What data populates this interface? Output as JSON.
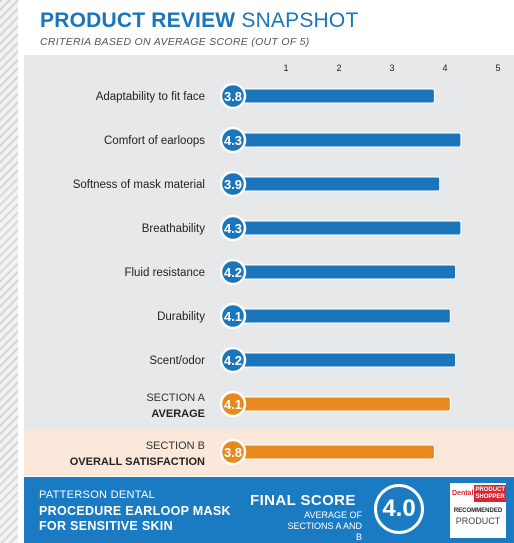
{
  "header": {
    "title_bold": "PRODUCT REVIEW",
    "title_light": "SNAPSHOT",
    "subtitle": "CRITERIA BASED ON AVERAGE SCORE (OUT OF 5)"
  },
  "colors": {
    "blue": "#1b75bb",
    "orange": "#e8891d"
  },
  "chart_data": {
    "type": "bar",
    "orientation": "horizontal",
    "xticks": [
      1,
      2,
      3,
      4,
      5
    ],
    "xlim": [
      0,
      5
    ],
    "categories": [
      {
        "label": "Adaptability to fit face",
        "value": 3.8,
        "value_label": "3.8",
        "color": "#1b75bb"
      },
      {
        "label": "Comfort of earloops",
        "value": 4.3,
        "value_label": "4.3",
        "color": "#1b75bb"
      },
      {
        "label": "Softness of mask material",
        "value": 3.9,
        "value_label": "3.9",
        "color": "#1b75bb"
      },
      {
        "label": "Breathability",
        "value": 4.3,
        "value_label": "4.3",
        "color": "#1b75bb"
      },
      {
        "label": "Fluid resistance",
        "value": 4.2,
        "value_label": "4.2",
        "color": "#1b75bb"
      },
      {
        "label": "Durability",
        "value": 4.1,
        "value_label": "4.1",
        "color": "#1b75bb"
      },
      {
        "label": "Scent/odor",
        "value": 4.2,
        "value_label": "4.2",
        "color": "#1b75bb"
      },
      {
        "label": "SECTION A",
        "label2": "AVERAGE",
        "value": 4.1,
        "value_label": "4.1",
        "color": "#e8891d"
      },
      {
        "label": "SECTION B",
        "label2": "OVERALL SATISFACTION",
        "value": 3.8,
        "value_label": "3.8",
        "color": "#e8891d"
      }
    ]
  },
  "footer": {
    "company": "PATTERSON DENTAL",
    "product": "PROCEDURE EARLOOP MASK FOR SENSITIVE SKIN",
    "final_label": "FINAL SCORE",
    "average_note": "AVERAGE OF SECTIONS A AND B",
    "final_score": "4.0",
    "badge": {
      "dental": "Dental",
      "product_shopper": "PRODUCT SHOPPER",
      "recommended": "RECOMMENDED",
      "product": "PRODUCT"
    }
  }
}
